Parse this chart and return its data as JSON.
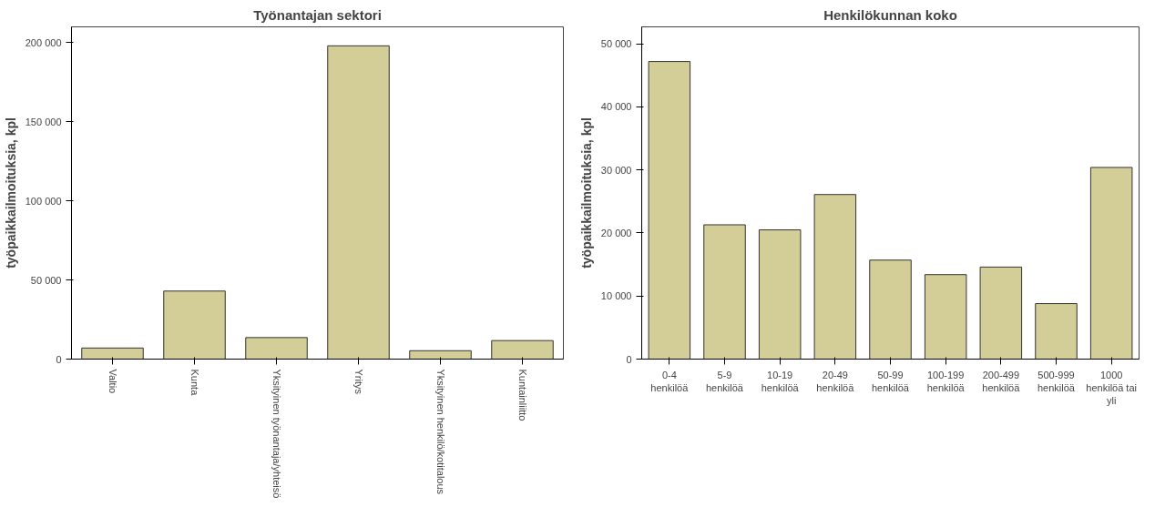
{
  "chart_data": [
    {
      "type": "bar",
      "title": "Työnantajan sektori",
      "ylabel": "työpaikkailmoituksia, kpl",
      "categories": [
        "Valtio",
        "Kunta",
        "Yksityinen työnantaja/yhteisö",
        "Yritys",
        "Yksityinen henkilö/kotitalous",
        "Kuntainliitto"
      ],
      "values": [
        7000,
        43000,
        13600,
        198000,
        5300,
        11700
      ],
      "color": "#d3ce97",
      "ylim": [
        0,
        210000
      ],
      "yticks": [
        {
          "value": 0,
          "label": "0"
        },
        {
          "value": 50000,
          "label": "50 000"
        },
        {
          "value": 100000,
          "label": "100 000"
        },
        {
          "value": 150000,
          "label": "150 000"
        },
        {
          "value": 200000,
          "label": "200 000"
        }
      ]
    },
    {
      "type": "bar",
      "title": "Henkilökunnan koko",
      "ylabel": "työpaikkailmoituksia, kpl",
      "categories": [
        "0-4\nhenkilöä",
        "5-9\nhenkilöä",
        "10-19\nhenkilöä",
        "20-49\nhenkilöä",
        "50-99\nhenkilöä",
        "100-199\nhenkilöä",
        "200-499\nhenkilöä",
        "500-999\nhenkilöä",
        "1000\nhenkilöä tai\nyli"
      ],
      "values": [
        47200,
        21300,
        20500,
        26100,
        15700,
        13400,
        14600,
        8800,
        30400
      ],
      "color": "#d3ce97",
      "ylim": [
        0,
        52700
      ],
      "yticks": [
        {
          "value": 0,
          "label": "0"
        },
        {
          "value": 10000,
          "label": "10 000"
        },
        {
          "value": 20000,
          "label": "20 000"
        },
        {
          "value": 30000,
          "label": "30 000"
        },
        {
          "value": 40000,
          "label": "40 000"
        },
        {
          "value": 50000,
          "label": "50 000"
        }
      ]
    }
  ]
}
